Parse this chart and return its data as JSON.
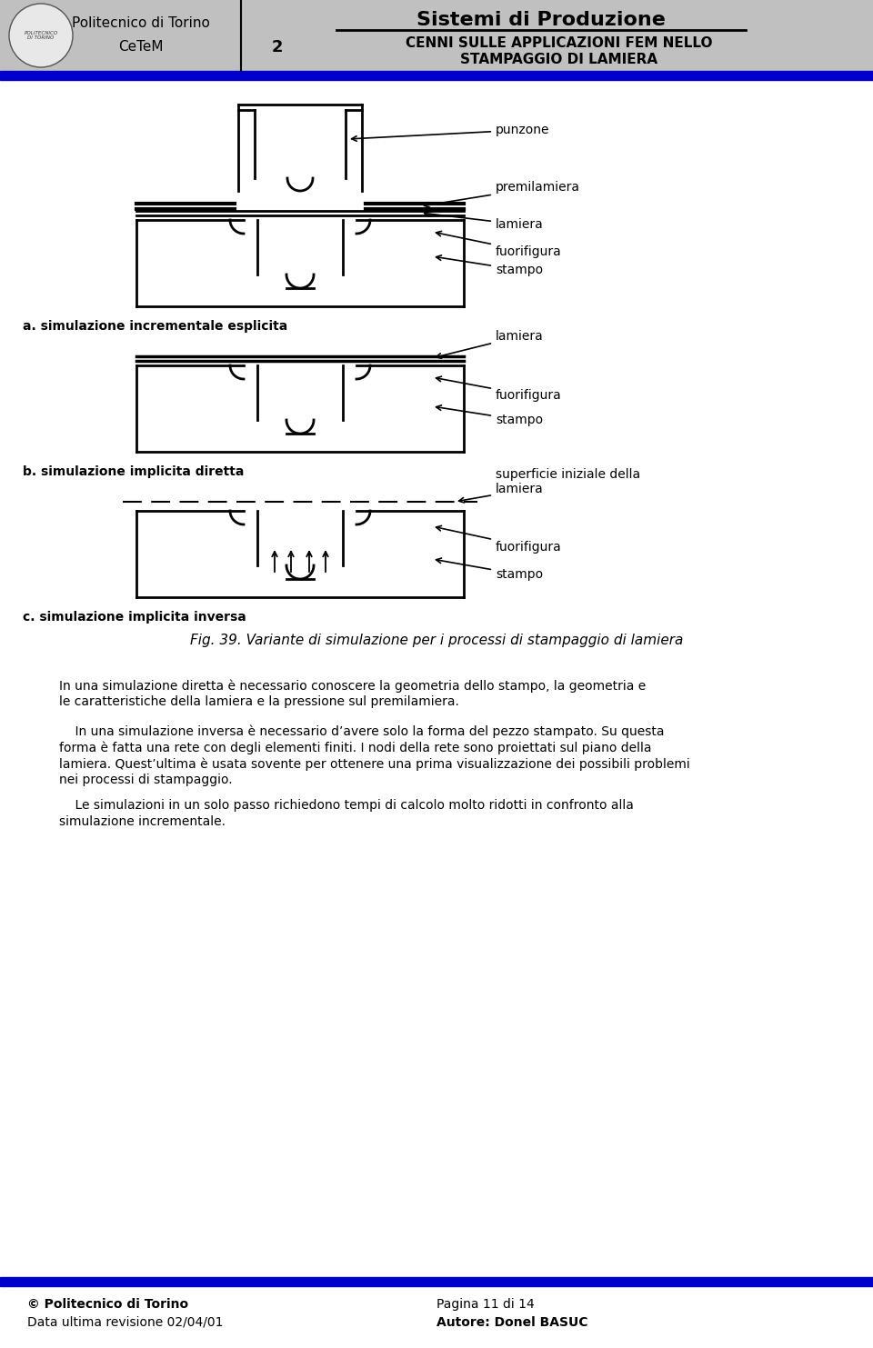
{
  "bg_color": "#ffffff",
  "header_bg": "#c0c0c0",
  "blue_bar_color": "#0000cc",
  "title_main": "Sistemi di Produzione",
  "title_sub1": "2",
  "inst1": "Politecnico di Torino",
  "inst2": "CeTeM",
  "fig_caption": "Fig. 39. Variante di simulazione per i processi di stampaggio di lamiera",
  "label_a": "a. simulazione incrementale esplicita",
  "label_b": "b. simulazione implicita diretta",
  "label_c": "c. simulazione implicita inversa",
  "footer_left1": "© Politecnico di Torino",
  "footer_left2": "Data ultima revisione 02/04/01",
  "footer_right1": "Pagina 11 di 14",
  "footer_right2": "Autore: Donel BASUC",
  "body_text1": "In una simulazione diretta è necessario conoscere la geometria dello stampo, la geometria e le caratteristiche della lamiera e la pressione sul premilamiera.",
  "body_text2": "    In una simulazione inversa è necessario d’avere solo la forma del pezzo stampato. Su questa forma è fatta una rete con degli elementi finiti. I nodi della rete sono proiettati sul piano della lamiera. Quest’ultima è usata sovente per ottenere una prima visualizzazione dei possibili problemi nei processi di stampaggio.",
  "body_text3": "    Le simulazioni in un solo passo richiedono tempi di calcolo molto ridotti in confronto alla simulazione incrementale."
}
